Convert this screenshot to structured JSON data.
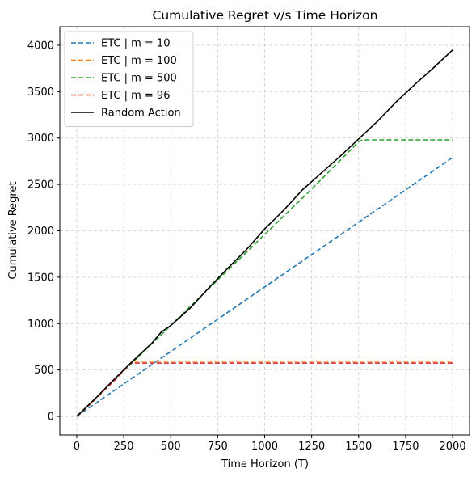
{
  "chart_data": {
    "type": "line",
    "title": "Cumulative Regret v/s Time Horizon",
    "xlabel": "Time Horizon (T)",
    "ylabel": "Cumulative Regret",
    "xlim": [
      -90,
      2090
    ],
    "ylim": [
      -200,
      4200
    ],
    "xticks": [
      0,
      250,
      500,
      750,
      1000,
      1250,
      1500,
      1750,
      2000
    ],
    "yticks": [
      0,
      500,
      1000,
      1500,
      2000,
      2500,
      3000,
      3500,
      4000
    ],
    "grid": true,
    "legend_position": "upper-left",
    "series": [
      {
        "name": "ETC | m = 10",
        "style": "dashed",
        "color": "#1f77b4",
        "x": [
          0,
          2000
        ],
        "y": [
          0,
          2790
        ]
      },
      {
        "name": "ETC | m = 100",
        "style": "dashed",
        "color": "#ff7f0e",
        "x": [
          0,
          50,
          100,
          150,
          200,
          250,
          300,
          2000
        ],
        "y": [
          0,
          90,
          185,
          290,
          390,
          490,
          595,
          595
        ]
      },
      {
        "name": "ETC | m = 500",
        "style": "dashed",
        "color": "#2ca02c",
        "x": [
          0,
          250,
          500,
          750,
          1000,
          1250,
          1500,
          1520,
          2000
        ],
        "y": [
          0,
          490,
          980,
          1470,
          1960,
          2450,
          2960,
          2980,
          2980
        ]
      },
      {
        "name": "ETC | m = 96",
        "style": "dashed",
        "color": "#d62728",
        "x": [
          0,
          50,
          100,
          150,
          200,
          250,
          288,
          2000
        ],
        "y": [
          0,
          95,
          190,
          290,
          385,
          490,
          575,
          575
        ]
      },
      {
        "name": "Random Action",
        "style": "solid",
        "color": "#000000",
        "x": [
          0,
          100,
          200,
          300,
          400,
          450,
          500,
          600,
          700,
          800,
          900,
          1000,
          1100,
          1200,
          1300,
          1400,
          1500,
          1600,
          1700,
          1800,
          1900,
          2000
        ],
        "y": [
          0,
          195,
          400,
          600,
          790,
          910,
          980,
          1160,
          1380,
          1590,
          1790,
          2020,
          2220,
          2440,
          2620,
          2800,
          2990,
          3180,
          3390,
          3580,
          3760,
          3950
        ]
      }
    ]
  }
}
